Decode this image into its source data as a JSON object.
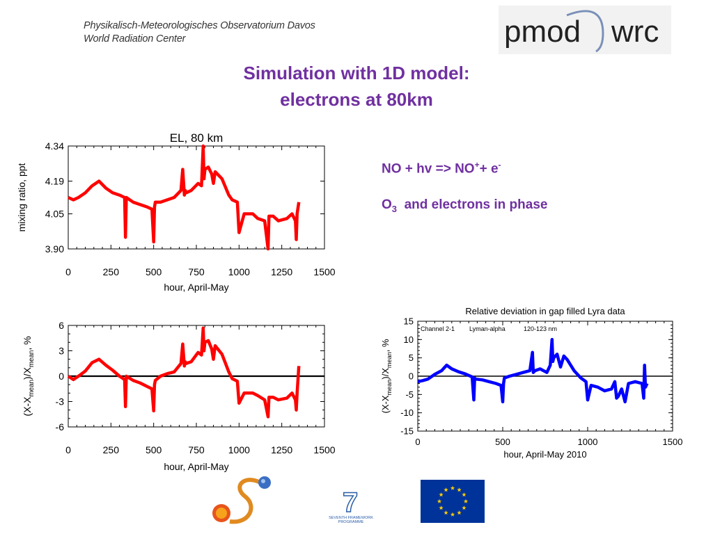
{
  "header": {
    "institute_line1": "Physikalisch-Meteorologisches Observatorium Davos",
    "institute_line2": "World Radiation Center",
    "logo_left": "pmod",
    "logo_right": "wrc"
  },
  "title": {
    "line1": "Simulation with 1D model:",
    "line2": "electrons at 80km"
  },
  "notes": {
    "reaction_prefix": "NO + hv => NO",
    "reaction_sup1": "+",
    "reaction_mid": "+ e",
    "reaction_sup2": "-",
    "phase_prefix": "O",
    "phase_sub": "3",
    "phase_rest": "  and electrons in phase"
  },
  "footer_logos": {
    "fp7_text_line1": "SEVENTH FRAMEWORK",
    "fp7_text_line2": "PROGRAMME",
    "fp7_mark": "7"
  },
  "colors": {
    "title": "#7030a0",
    "model": "#ff0000",
    "lyra": "#0000ff",
    "eu_blue": "#003399",
    "eu_star": "#ffcc00"
  },
  "chart_data": [
    {
      "type": "line",
      "title": "EL, 80 km",
      "xlabel": "hour, April-May",
      "ylabel": "mixing ratio, ppt",
      "xlim": [
        0,
        1500
      ],
      "ylim": [
        3.9,
        4.34
      ],
      "xticks": [
        0,
        250,
        500,
        750,
        1000,
        1250,
        1500
      ],
      "yticks": [
        3.9,
        4.05,
        4.19,
        4.34
      ],
      "ytick_labels": [
        "3.90",
        "4.05",
        "4.19",
        "4.34"
      ],
      "series": [
        {
          "color": "#ff0000",
          "x": [
            0,
            30,
            60,
            100,
            140,
            180,
            220,
            260,
            300,
            330,
            335,
            340,
            380,
            420,
            460,
            490,
            500,
            505,
            510,
            540,
            580,
            620,
            660,
            670,
            680,
            685,
            690,
            720,
            760,
            780,
            790,
            795,
            800,
            820,
            840,
            850,
            860,
            900,
            940,
            960,
            990,
            1000,
            1030,
            1080,
            1110,
            1150,
            1170,
            1175,
            1200,
            1230,
            1280,
            1310,
            1330,
            1335,
            1340,
            1350
          ],
          "y": [
            4.12,
            4.11,
            4.12,
            4.14,
            4.17,
            4.19,
            4.16,
            4.14,
            4.13,
            4.12,
            3.95,
            4.12,
            4.1,
            4.09,
            4.08,
            4.07,
            3.93,
            4.08,
            4.1,
            4.1,
            4.11,
            4.12,
            4.15,
            4.24,
            4.13,
            4.15,
            4.14,
            4.15,
            4.18,
            4.17,
            4.34,
            4.2,
            4.24,
            4.25,
            4.22,
            4.18,
            4.23,
            4.2,
            4.13,
            4.11,
            4.1,
            3.97,
            4.05,
            4.05,
            4.03,
            4.02,
            3.9,
            4.04,
            4.04,
            4.02,
            4.03,
            4.05,
            4.02,
            3.94,
            4.05,
            4.1
          ]
        }
      ]
    },
    {
      "type": "line",
      "title": "",
      "xlabel": "hour, April-May",
      "ylabel": "(X-X_mean)/X_mean, %",
      "xlim": [
        0,
        1500
      ],
      "ylim": [
        -6,
        6
      ],
      "xticks": [
        0,
        250,
        500,
        750,
        1000,
        1250,
        1500
      ],
      "yticks": [
        -6,
        -3,
        0,
        3,
        6
      ],
      "zero_line": true,
      "series": [
        {
          "color": "#ff0000",
          "x": [
            0,
            30,
            60,
            100,
            140,
            180,
            220,
            260,
            300,
            330,
            335,
            340,
            380,
            420,
            460,
            490,
            500,
            505,
            510,
            540,
            580,
            620,
            660,
            670,
            680,
            685,
            690,
            720,
            760,
            780,
            790,
            795,
            800,
            820,
            840,
            850,
            860,
            900,
            940,
            960,
            990,
            1000,
            1030,
            1080,
            1110,
            1150,
            1170,
            1175,
            1200,
            1230,
            1280,
            1310,
            1330,
            1335,
            1340,
            1350
          ],
          "y": [
            0.0,
            -0.4,
            0.0,
            0.6,
            1.6,
            2.0,
            1.3,
            0.7,
            0.0,
            -0.4,
            -3.6,
            0.0,
            -0.5,
            -0.8,
            -1.2,
            -1.5,
            -4.1,
            -1.0,
            -0.5,
            0.0,
            0.3,
            0.5,
            1.5,
            3.8,
            1.2,
            1.7,
            1.5,
            1.7,
            2.8,
            2.5,
            5.7,
            3.0,
            4.0,
            4.2,
            3.2,
            2.0,
            3.6,
            2.6,
            0.5,
            -0.3,
            -0.6,
            -3.2,
            -2.0,
            -2.0,
            -2.3,
            -2.8,
            -4.8,
            -2.5,
            -2.5,
            -2.8,
            -2.6,
            -2.0,
            -2.8,
            -4.0,
            -2.0,
            1.2
          ]
        }
      ]
    },
    {
      "type": "line",
      "title": "Relative deviation in gap filled Lyra data",
      "xlabel": "hour, April-May 2010",
      "ylabel": "(X-X_mean)/X_mean, %",
      "legend_text": [
        "Channel 2-1",
        "Lyman-alpha",
        "120-123 nm"
      ],
      "xlim": [
        0,
        1500
      ],
      "ylim": [
        -15,
        15
      ],
      "xticks": [
        0,
        500,
        1000,
        1500
      ],
      "yticks": [
        -15,
        -10,
        -5,
        0,
        5,
        10,
        15
      ],
      "zero_line": true,
      "series": [
        {
          "color": "#0000ff",
          "x": [
            0,
            30,
            60,
            100,
            140,
            170,
            200,
            240,
            280,
            320,
            330,
            335,
            340,
            380,
            420,
            460,
            490,
            500,
            505,
            510,
            540,
            580,
            620,
            660,
            675,
            680,
            690,
            720,
            760,
            780,
            790,
            795,
            800,
            820,
            840,
            860,
            880,
            900,
            920,
            940,
            960,
            990,
            1000,
            1020,
            1060,
            1100,
            1140,
            1160,
            1170,
            1180,
            1200,
            1220,
            1240,
            1280,
            1320,
            1330,
            1335,
            1340,
            1350
          ],
          "y": [
            -1.5,
            -1.2,
            -0.8,
            0.5,
            1.5,
            3.0,
            2.0,
            1.2,
            0.6,
            -0.2,
            -6.5,
            -0.5,
            -0.8,
            -1.0,
            -1.5,
            -2.0,
            -2.5,
            -7.0,
            -2.0,
            -0.5,
            0.0,
            0.5,
            1.0,
            1.5,
            6.5,
            1.0,
            1.5,
            2.0,
            1.0,
            3.0,
            10.0,
            4.0,
            5.0,
            6.0,
            2.5,
            5.5,
            4.5,
            3.0,
            1.5,
            0.5,
            -0.5,
            -1.5,
            -6.5,
            -2.5,
            -3.0,
            -4.0,
            -3.5,
            -1.5,
            -6.0,
            -5.5,
            -3.5,
            -7.0,
            -2.0,
            -1.5,
            -2.0,
            -6.0,
            3.0,
            -3.0,
            -2.0
          ]
        }
      ]
    }
  ]
}
